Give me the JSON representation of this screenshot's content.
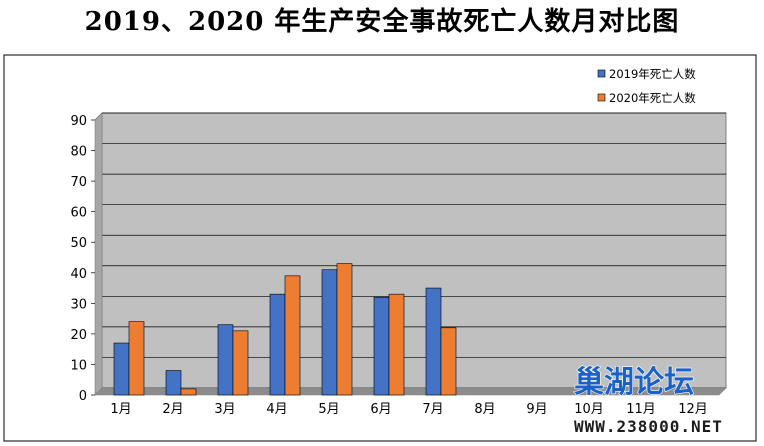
{
  "title": "2019、2020 年生产安全事故死亡人数月对比图",
  "chart_data": {
    "type": "bar",
    "categories": [
      "1月",
      "2月",
      "3月",
      "4月",
      "5月",
      "6月",
      "7月",
      "8月",
      "9月",
      "10月",
      "11月",
      "12月"
    ],
    "series": [
      {
        "name": "2019年死亡人数",
        "color": "#4472c4",
        "values": [
          17,
          8,
          23,
          33,
          41,
          32,
          35,
          null,
          null,
          null,
          null,
          null
        ]
      },
      {
        "name": "2020年死亡人数",
        "color": "#ed7d31",
        "values": [
          24,
          2,
          21,
          39,
          43,
          33,
          22,
          null,
          null,
          null,
          null,
          null
        ]
      }
    ],
    "ylim": [
      0,
      90
    ],
    "yticks": [
      0,
      10,
      20,
      30,
      40,
      50,
      60,
      70,
      80,
      90
    ],
    "grid": true,
    "plot_background": "#c0c0c0",
    "legend_position": "top-right"
  },
  "watermark": {
    "text": "巢湖论坛",
    "url": "WWW.238000.NET"
  }
}
